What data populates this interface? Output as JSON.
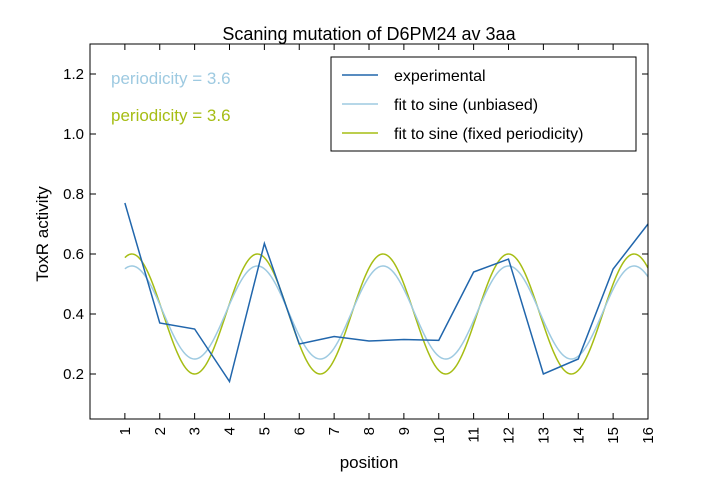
{
  "chart_data": {
    "type": "line",
    "title": "Scaning mutation of D6PM24 av 3aa",
    "xlabel": "position",
    "ylabel": "ToxR activity",
    "xlim": [
      0,
      16
    ],
    "ylim": [
      0.05,
      1.3
    ],
    "x_ticks": [
      1,
      2,
      3,
      4,
      5,
      6,
      7,
      8,
      9,
      10,
      11,
      12,
      13,
      14,
      15,
      16
    ],
    "x_tick_labels": [
      "1",
      "2",
      "3",
      "4",
      "5",
      "6",
      "7",
      "8",
      "9",
      "10",
      "11",
      "12",
      "13",
      "14",
      "15",
      "16"
    ],
    "y_ticks": [
      0.2,
      0.4,
      0.6,
      0.8,
      1.0,
      1.2
    ],
    "y_tick_labels": [
      "0.2",
      "0.4",
      "0.6",
      "0.8",
      "1.0",
      "1.2"
    ],
    "grid": false,
    "legend_position": "top-right",
    "series": [
      {
        "name": "experimental",
        "color": "#2166ac",
        "kind": "points",
        "x": [
          1,
          2,
          3,
          4,
          5,
          6,
          7,
          8,
          9,
          10,
          11,
          12,
          13,
          14,
          15,
          16
        ],
        "y": [
          0.77,
          0.37,
          0.35,
          0.175,
          0.635,
          0.3,
          0.325,
          0.31,
          0.315,
          0.312,
          0.54,
          0.583,
          0.2,
          0.25,
          0.55,
          0.7
        ]
      },
      {
        "name": "fit to sine (unbiased)",
        "color": "#9ecae1",
        "kind": "sine",
        "x_range": [
          1,
          16
        ],
        "mean": 0.405,
        "amplitude": 0.155,
        "period": 3.6,
        "peak_x": 1.2
      },
      {
        "name": "fit to sine (fixed periodicity)",
        "color": "#a6bd14",
        "kind": "sine",
        "x_range": [
          1,
          16
        ],
        "mean": 0.4,
        "amplitude": 0.2,
        "period": 3.6,
        "peak_x": 1.2
      }
    ],
    "annotations": [
      {
        "text": "periodicity = 3.6",
        "color": "#9ecae1"
      },
      {
        "text": "periodicity = 3.6",
        "color": "#a6bd14"
      }
    ]
  }
}
